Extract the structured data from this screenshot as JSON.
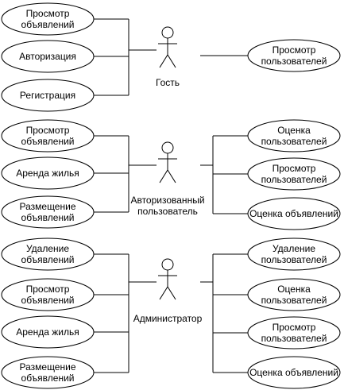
{
  "actors": [
    {
      "label": [
        "Гость"
      ],
      "left_use_cases": [
        [
          "Просмотр",
          "объявлений"
        ],
        [
          "Авторизация"
        ],
        [
          "Регистрация"
        ]
      ],
      "right_use_cases": [
        [
          "Просмотр",
          "пользователей"
        ]
      ]
    },
    {
      "label": [
        "Авторизованный",
        "пользователь"
      ],
      "left_use_cases": [
        [
          "Просмотр",
          "объявлений"
        ],
        [
          "Аренда жилья"
        ],
        [
          "Размещение",
          "объявлений"
        ]
      ],
      "right_use_cases": [
        [
          "Оценка",
          "пользователей"
        ],
        [
          "Просмотр",
          "пользователей"
        ],
        [
          "Оценка объявлений"
        ]
      ]
    },
    {
      "label": [
        "Администратор"
      ],
      "left_use_cases": [
        [
          "Удаление",
          "объявлений"
        ],
        [
          "Просмотр",
          "объявлений"
        ],
        [
          "Аренда жилья"
        ],
        [
          "Размещение",
          "объявлений"
        ]
      ],
      "right_use_cases": [
        [
          "Удаление",
          "пользователей"
        ],
        [
          "Оценка",
          "пользователей"
        ],
        [
          "Просмотр",
          "пользователей"
        ],
        [
          "Оценка объявлений"
        ]
      ]
    }
  ]
}
